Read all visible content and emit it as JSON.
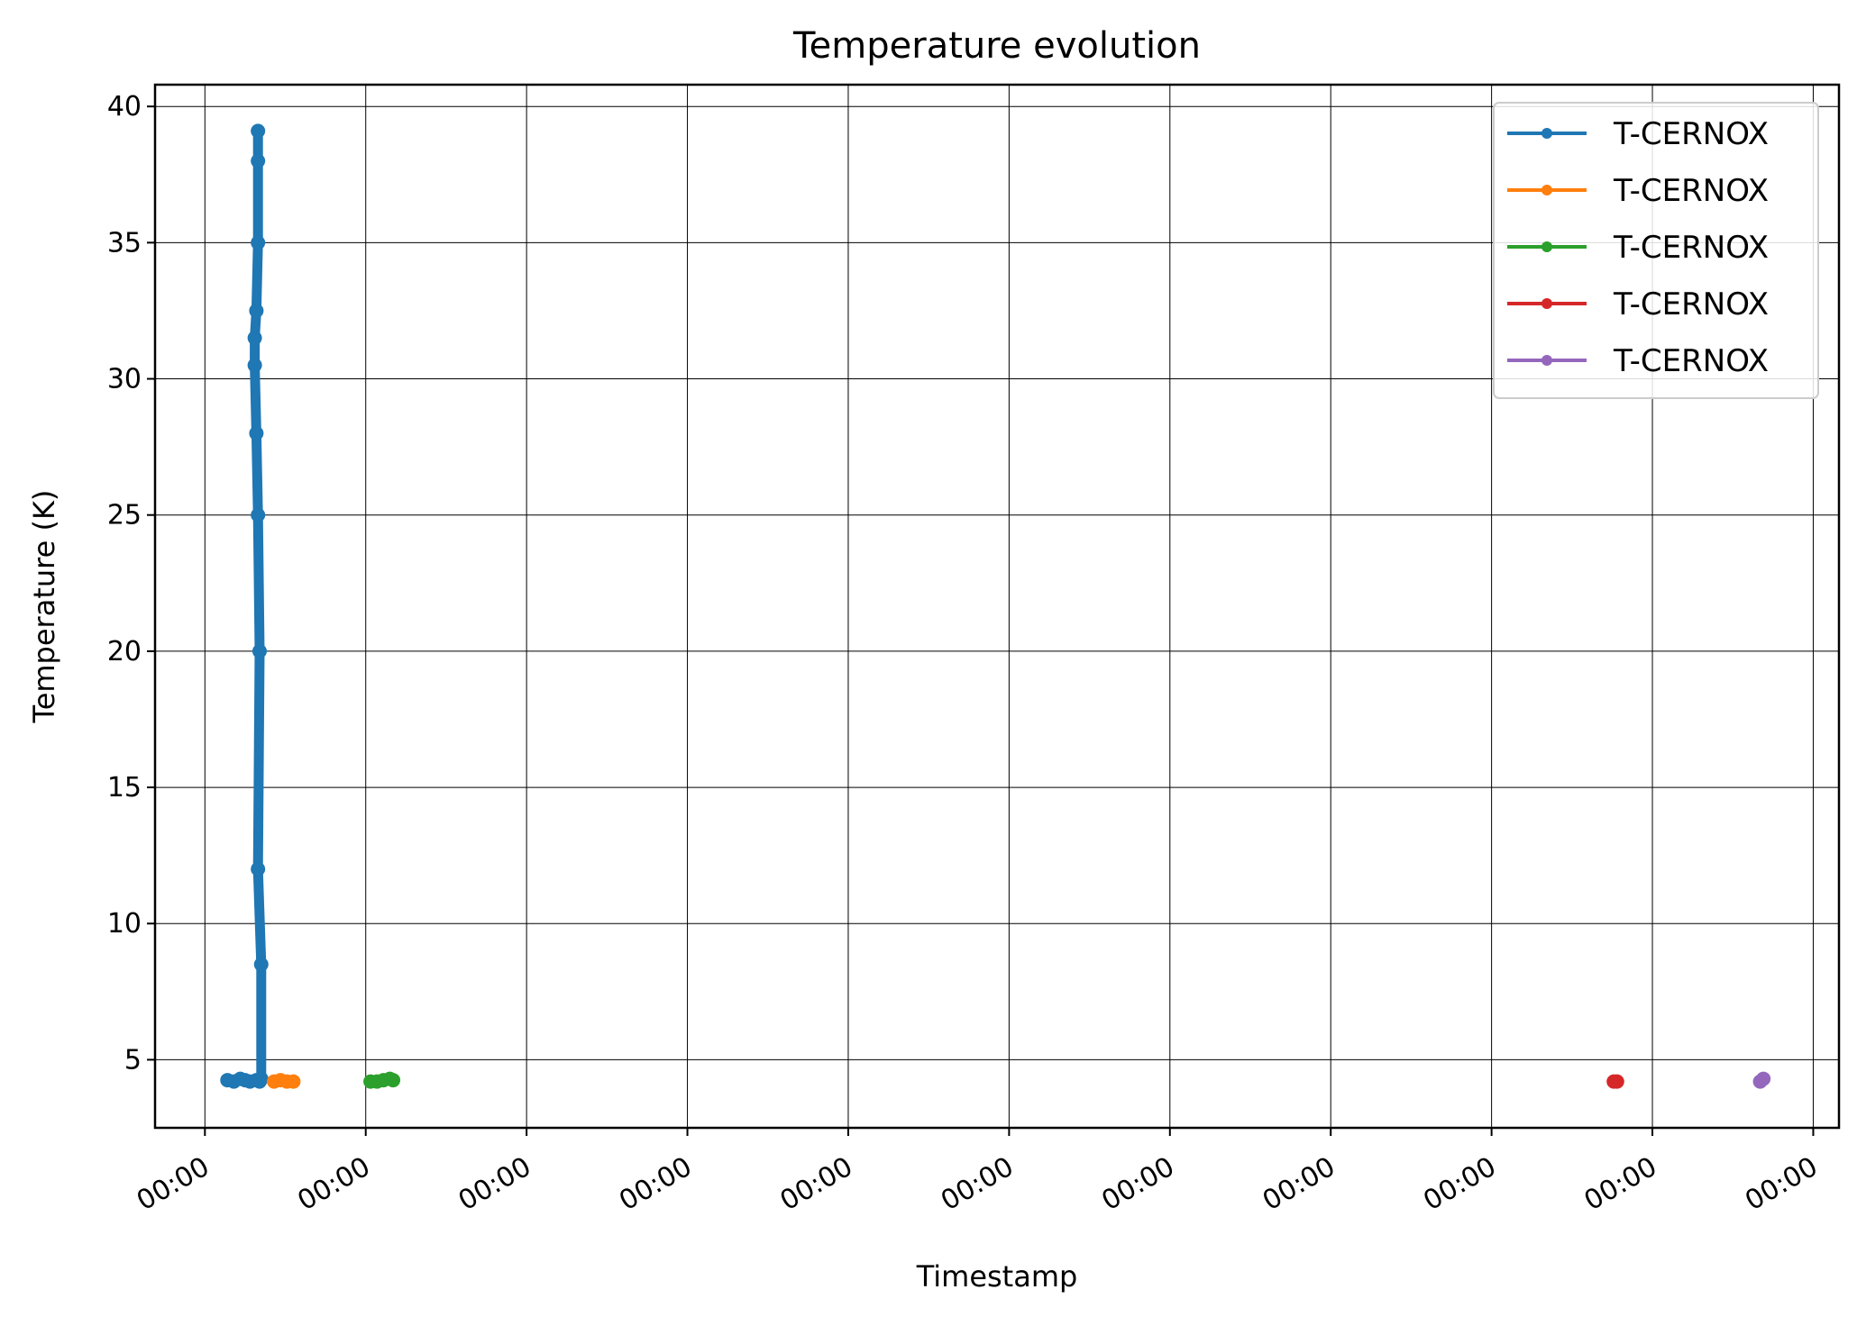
{
  "chart_data": {
    "type": "line",
    "title": "Temperature evolution",
    "xlabel": "Timestamp",
    "ylabel": "Temperature (K)",
    "x_tick_labels": [
      "00:00",
      "00:00",
      "00:00",
      "00:00",
      "00:00",
      "00:00",
      "00:00",
      "00:00",
      "00:00",
      "00:00",
      "00:00"
    ],
    "y_ticks": [
      5,
      10,
      15,
      20,
      25,
      30,
      35,
      40
    ],
    "ylim": [
      2.5,
      40.8
    ],
    "xlim": [
      -0.31,
      10.16
    ],
    "grid": true,
    "legend_position": "top-right",
    "series": [
      {
        "name": "T-CERNOX",
        "color": "#1f77b4",
        "x": [
          0.14,
          0.18,
          0.22,
          0.25,
          0.28,
          0.32,
          0.34,
          0.35,
          0.35,
          0.33,
          0.34,
          0.33,
          0.32,
          0.31,
          0.31,
          0.32,
          0.33,
          0.33,
          0.33
        ],
        "y": [
          4.25,
          4.2,
          4.3,
          4.25,
          4.2,
          4.25,
          4.2,
          4.3,
          8.5,
          12.0,
          20.0,
          25.0,
          28.0,
          30.5,
          31.5,
          32.5,
          35.0,
          38.0,
          39.1
        ]
      },
      {
        "name": "T-CERNOX",
        "color": "#ff7f0e",
        "x": [
          0.43,
          0.47,
          0.51,
          0.55
        ],
        "y": [
          4.2,
          4.25,
          4.2,
          4.2
        ]
      },
      {
        "name": "T-CERNOX",
        "color": "#2ca02c",
        "x": [
          1.03,
          1.07,
          1.11,
          1.15,
          1.17
        ],
        "y": [
          4.2,
          4.2,
          4.25,
          4.3,
          4.25
        ]
      },
      {
        "name": "T-CERNOX",
        "color": "#d62728",
        "x": [
          8.76,
          8.78
        ],
        "y": [
          4.2,
          4.2
        ]
      },
      {
        "name": "T-CERNOX",
        "color": "#9467bd",
        "x": [
          9.67,
          9.69
        ],
        "y": [
          4.2,
          4.3
        ]
      }
    ]
  }
}
